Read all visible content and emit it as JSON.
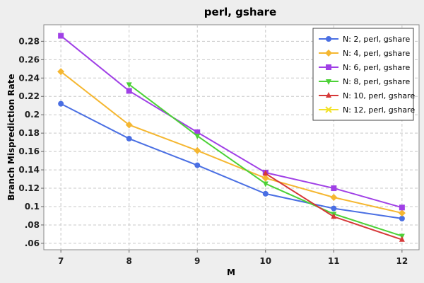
{
  "chart_data": {
    "type": "line",
    "title": "perl, gshare",
    "xlabel": "M",
    "ylabel": "Branch Misprediction Rate",
    "x": [
      7,
      8,
      9,
      10,
      11,
      12
    ],
    "xlim": [
      6.75,
      12.25
    ],
    "ylim": [
      0.053,
      0.298
    ],
    "yticks": [
      0.06,
      0.08,
      0.1,
      0.12,
      0.14,
      0.16,
      0.18,
      0.2,
      0.22,
      0.24,
      0.26,
      0.28
    ],
    "ytick_labels": [
      ".06",
      ".08",
      "0.1",
      "0.12",
      "0.14",
      "0.16",
      "0.18",
      "0.2",
      "0.22",
      "0.24",
      "0.26",
      "0.28"
    ],
    "xtick_labels": [
      "7",
      "8",
      "9",
      "10",
      "11",
      "12"
    ],
    "grid": true,
    "legend_position": "top-right",
    "series": [
      {
        "name": "N: 2, perl, gshare",
        "color": "#4a6fe3",
        "marker": "circle",
        "x": [
          7,
          8,
          9,
          10,
          11,
          12
        ],
        "values": [
          0.212,
          0.174,
          0.145,
          0.114,
          0.098,
          0.087
        ]
      },
      {
        "name": "N: 4, perl, gshare",
        "color": "#f5b731",
        "marker": "diamond",
        "x": [
          7,
          8,
          9,
          10,
          11,
          12
        ],
        "values": [
          0.247,
          0.189,
          0.161,
          0.131,
          0.11,
          0.093
        ]
      },
      {
        "name": "N: 6, perl, gshare",
        "color": "#a040e6",
        "marker": "square",
        "x": [
          7,
          8,
          9,
          10,
          11,
          12
        ],
        "values": [
          0.286,
          0.226,
          0.181,
          0.137,
          0.12,
          0.099
        ]
      },
      {
        "name": "N: 8, perl, gshare",
        "color": "#4cd137",
        "marker": "triangle-down",
        "x": [
          8,
          9,
          10,
          11,
          12
        ],
        "values": [
          0.233,
          0.177,
          0.125,
          0.092,
          0.068
        ]
      },
      {
        "name": "N: 10, perl, gshare",
        "color": "#d63838",
        "marker": "triangle-up",
        "x": [
          10,
          11,
          12
        ],
        "values": [
          0.136,
          0.089,
          0.064
        ]
      },
      {
        "name": "N: 12, perl, gshare",
        "color": "#f2e227",
        "marker": "x",
        "x": [],
        "values": []
      }
    ]
  }
}
